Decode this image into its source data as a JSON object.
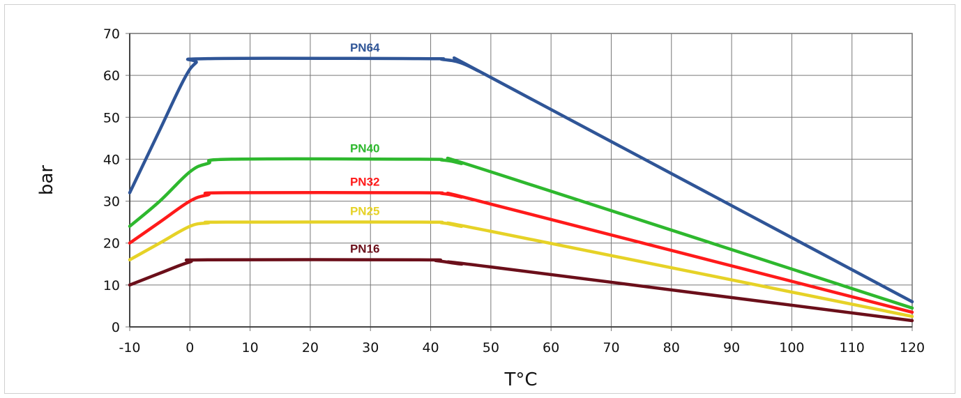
{
  "chart_data": {
    "type": "line",
    "xlabel": "T°C",
    "ylabel": "bar",
    "xlim": [
      -10,
      120
    ],
    "ylim": [
      0,
      70
    ],
    "x_ticks": [
      -10,
      0,
      10,
      20,
      30,
      40,
      50,
      60,
      70,
      80,
      90,
      100,
      110,
      120
    ],
    "y_ticks": [
      0,
      10,
      20,
      30,
      40,
      50,
      60,
      70
    ],
    "grid": true,
    "legend": "inline labels",
    "series": [
      {
        "name": "PN64",
        "color": "#2f5597",
        "label_at": [
          30,
          66
        ],
        "points": [
          [
            -10,
            32
          ],
          [
            -5,
            47
          ],
          [
            -1,
            59
          ],
          [
            1,
            63
          ],
          [
            3,
            64
          ],
          [
            38,
            64
          ],
          [
            42,
            63.8
          ],
          [
            45,
            63
          ],
          [
            48,
            61
          ],
          [
            50,
            59.5
          ],
          [
            120,
            6
          ]
        ]
      },
      {
        "name": "PN40",
        "color": "#2eb82e",
        "label_at": [
          30,
          42
        ],
        "points": [
          [
            -10,
            24
          ],
          [
            -5,
            30
          ],
          [
            0,
            37
          ],
          [
            3,
            39
          ],
          [
            7,
            40
          ],
          [
            38,
            40
          ],
          [
            42,
            39.8
          ],
          [
            45,
            39
          ],
          [
            50,
            37
          ],
          [
            120,
            4.5
          ]
        ]
      },
      {
        "name": "PN32",
        "color": "#ff1a1a",
        "label_at": [
          30,
          34
        ],
        "points": [
          [
            -10,
            20
          ],
          [
            -5,
            25
          ],
          [
            0,
            30
          ],
          [
            3,
            31.5
          ],
          [
            6,
            32
          ],
          [
            38,
            32
          ],
          [
            42,
            31.8
          ],
          [
            45,
            31
          ],
          [
            50,
            29.3
          ],
          [
            120,
            3.5
          ]
        ]
      },
      {
        "name": "PN25",
        "color": "#e6d227",
        "label_at": [
          30,
          27
        ],
        "points": [
          [
            -10,
            16
          ],
          [
            -5,
            20
          ],
          [
            0,
            24
          ],
          [
            3,
            24.8
          ],
          [
            6,
            25
          ],
          [
            38,
            25
          ],
          [
            42,
            24.8
          ],
          [
            45,
            24
          ],
          [
            50,
            22.8
          ],
          [
            120,
            2.5
          ]
        ]
      },
      {
        "name": "PN16",
        "color": "#6b0f1a",
        "label_at": [
          30,
          18
        ],
        "points": [
          [
            -10,
            10
          ],
          [
            -5,
            12.8
          ],
          [
            0,
            15.5
          ],
          [
            3,
            16
          ],
          [
            38,
            16
          ],
          [
            41,
            15.8
          ],
          [
            45,
            15
          ],
          [
            50,
            14.3
          ],
          [
            120,
            1.5
          ]
        ]
      }
    ]
  }
}
